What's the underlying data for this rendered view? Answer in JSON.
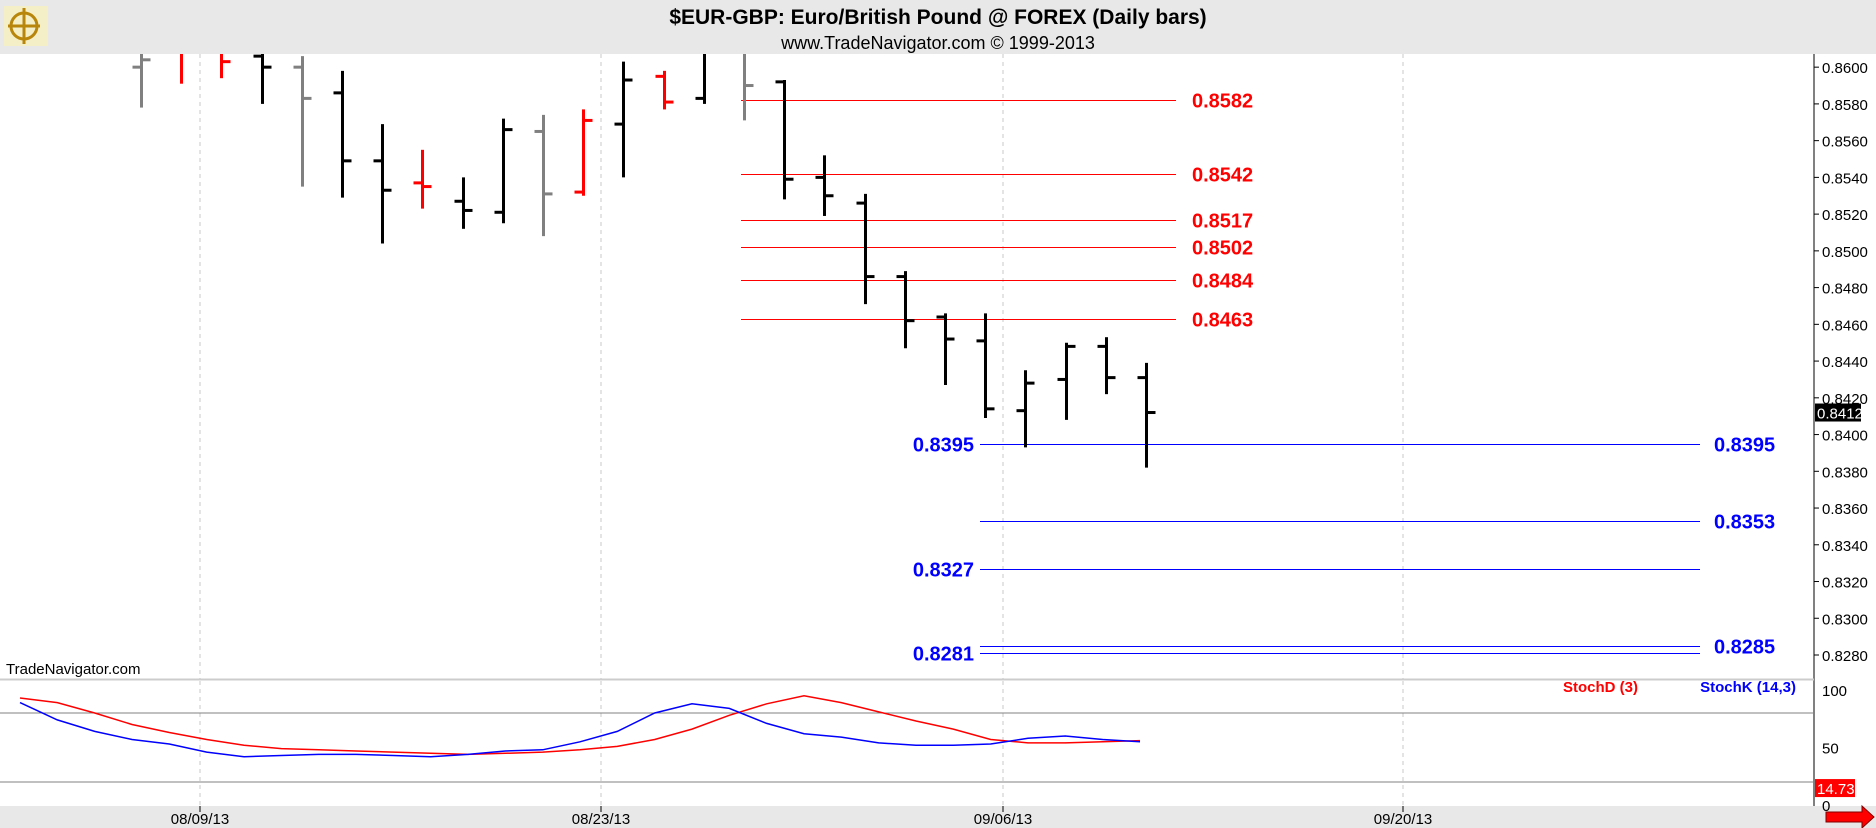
{
  "header": {
    "title": "$EUR-GBP:  Euro/British Pound @ FOREX  (Daily bars)",
    "subtitle": "www.TradeNavigator.com © 1999-2013",
    "watermark": "TradeNavigator.com"
  },
  "colors": {
    "up_bar": "#000000",
    "down_bar": "#ff0000",
    "neutral_bar": "#808080",
    "resistance": "#ff0000",
    "support": "#0000ff",
    "stoch_d": "#ff0000",
    "stoch_k": "#0000ff",
    "background": "#ffffff",
    "frame": "#e8e8e8"
  },
  "chart_data": [
    {
      "type": "ohlc",
      "title": "$EUR-GBP:  Euro/British Pound @ FOREX  (Daily bars)",
      "ylim": [
        0.826,
        0.861
      ],
      "y_ticks": [
        "0.8280",
        "0.8300",
        "0.8320",
        "0.8340",
        "0.8360",
        "0.8380",
        "0.8400",
        "0.8420",
        "0.8440",
        "0.8460",
        "0.8480",
        "0.8500",
        "0.8520",
        "0.8540",
        "0.8560",
        "0.8580",
        "0.8600"
      ],
      "x_ticks": [
        "08/09/13",
        "08/23/13",
        "09/06/13",
        "09/20/13"
      ],
      "last_price": "0.8412",
      "bars": [
        {
          "o": 0.86,
          "h": 0.861,
          "l": 0.8578,
          "c": 0.8604,
          "color": "gray"
        },
        {
          "o": 0.8612,
          "h": 0.8612,
          "l": 0.8591,
          "c": 0.8608,
          "color": "red"
        },
        {
          "o": 0.8608,
          "h": 0.861,
          "l": 0.8594,
          "c": 0.8603,
          "color": "red"
        },
        {
          "o": 0.8606,
          "h": 0.8608,
          "l": 0.858,
          "c": 0.86,
          "color": "black"
        },
        {
          "o": 0.86,
          "h": 0.8606,
          "l": 0.8535,
          "c": 0.8583,
          "color": "gray"
        },
        {
          "o": 0.8586,
          "h": 0.8598,
          "l": 0.8529,
          "c": 0.8549,
          "color": "black"
        },
        {
          "o": 0.8549,
          "h": 0.8569,
          "l": 0.8504,
          "c": 0.8533,
          "color": "black"
        },
        {
          "o": 0.8537,
          "h": 0.8555,
          "l": 0.8523,
          "c": 0.8535,
          "color": "red"
        },
        {
          "o": 0.8527,
          "h": 0.854,
          "l": 0.8512,
          "c": 0.8522,
          "color": "black"
        },
        {
          "o": 0.8521,
          "h": 0.8572,
          "l": 0.8515,
          "c": 0.8566,
          "color": "black"
        },
        {
          "o": 0.8565,
          "h": 0.8574,
          "l": 0.8508,
          "c": 0.8531,
          "color": "gray"
        },
        {
          "o": 0.8532,
          "h": 0.8577,
          "l": 0.853,
          "c": 0.8571,
          "color": "red"
        },
        {
          "o": 0.8569,
          "h": 0.8603,
          "l": 0.854,
          "c": 0.8593,
          "color": "black"
        },
        {
          "o": 0.8595,
          "h": 0.8598,
          "l": 0.8577,
          "c": 0.8581,
          "color": "red"
        },
        {
          "o": 0.8583,
          "h": 0.861,
          "l": 0.858,
          "c": 0.8608,
          "color": "black"
        },
        {
          "o": 0.8608,
          "h": 0.8612,
          "l": 0.8571,
          "c": 0.859,
          "color": "gray"
        },
        {
          "o": 0.8592,
          "h": 0.8593,
          "l": 0.8528,
          "c": 0.8539,
          "color": "black"
        },
        {
          "o": 0.854,
          "h": 0.8552,
          "l": 0.8519,
          "c": 0.853,
          "color": "black"
        },
        {
          "o": 0.8526,
          "h": 0.8531,
          "l": 0.8471,
          "c": 0.8486,
          "color": "black"
        },
        {
          "o": 0.8486,
          "h": 0.8489,
          "l": 0.8447,
          "c": 0.8462,
          "color": "black"
        },
        {
          "o": 0.8464,
          "h": 0.8466,
          "l": 0.8427,
          "c": 0.8452,
          "color": "black"
        },
        {
          "o": 0.8451,
          "h": 0.8466,
          "l": 0.8409,
          "c": 0.8414,
          "color": "black"
        },
        {
          "o": 0.8413,
          "h": 0.8435,
          "l": 0.8393,
          "c": 0.8428,
          "color": "black"
        },
        {
          "o": 0.843,
          "h": 0.845,
          "l": 0.8408,
          "c": 0.8448,
          "color": "black"
        },
        {
          "o": 0.8448,
          "h": 0.8453,
          "l": 0.8422,
          "c": 0.8431,
          "color": "black"
        },
        {
          "o": 0.8431,
          "h": 0.8439,
          "l": 0.8382,
          "c": 0.8412,
          "color": "black"
        }
      ],
      "levels": [
        {
          "value": 0.8582,
          "label": "0.8582",
          "kind": "resistance"
        },
        {
          "value": 0.8542,
          "label": "0.8542",
          "kind": "resistance"
        },
        {
          "value": 0.8517,
          "label": "0.8517",
          "kind": "resistance"
        },
        {
          "value": 0.8502,
          "label": "0.8502",
          "kind": "resistance"
        },
        {
          "value": 0.8484,
          "label": "0.8484",
          "kind": "resistance"
        },
        {
          "value": 0.8463,
          "label": "0.8463",
          "kind": "resistance"
        },
        {
          "value": 0.8395,
          "label": "0.8395",
          "kind": "support",
          "label_side": "both"
        },
        {
          "value": 0.8353,
          "label": "0.8353",
          "kind": "support",
          "label_side": "right"
        },
        {
          "value": 0.8327,
          "label": "0.8327",
          "kind": "support",
          "label_side": "left"
        },
        {
          "value": 0.8285,
          "label": "0.8285",
          "kind": "support",
          "label_side": "right"
        },
        {
          "value": 0.8281,
          "label": "0.8281",
          "kind": "support",
          "label_side": "left"
        }
      ]
    },
    {
      "type": "line",
      "title": "",
      "ylim": [
        0,
        100
      ],
      "y_ticks": [
        "0",
        "50",
        "100"
      ],
      "reference_lines": [
        80,
        20
      ],
      "last_value": "14.73",
      "series": [
        {
          "name": "StochD (3)",
          "color": "#ff0000",
          "values": [
            93,
            89,
            80,
            70,
            63,
            57,
            52,
            49,
            48,
            47,
            46,
            45,
            44,
            45,
            46,
            48,
            51,
            57,
            66,
            78,
            88,
            95,
            89,
            81,
            73,
            66,
            57,
            54,
            54,
            55,
            56
          ]
        },
        {
          "name": "StochK (14,3)",
          "color": "#0000ff",
          "values": [
            89,
            74,
            64,
            57,
            53,
            46,
            42,
            43,
            44,
            44,
            43,
            42,
            44,
            47,
            48,
            55,
            64,
            80,
            88,
            84,
            71,
            62,
            59,
            54,
            52,
            52,
            53,
            58,
            60,
            57,
            55
          ]
        }
      ]
    }
  ]
}
